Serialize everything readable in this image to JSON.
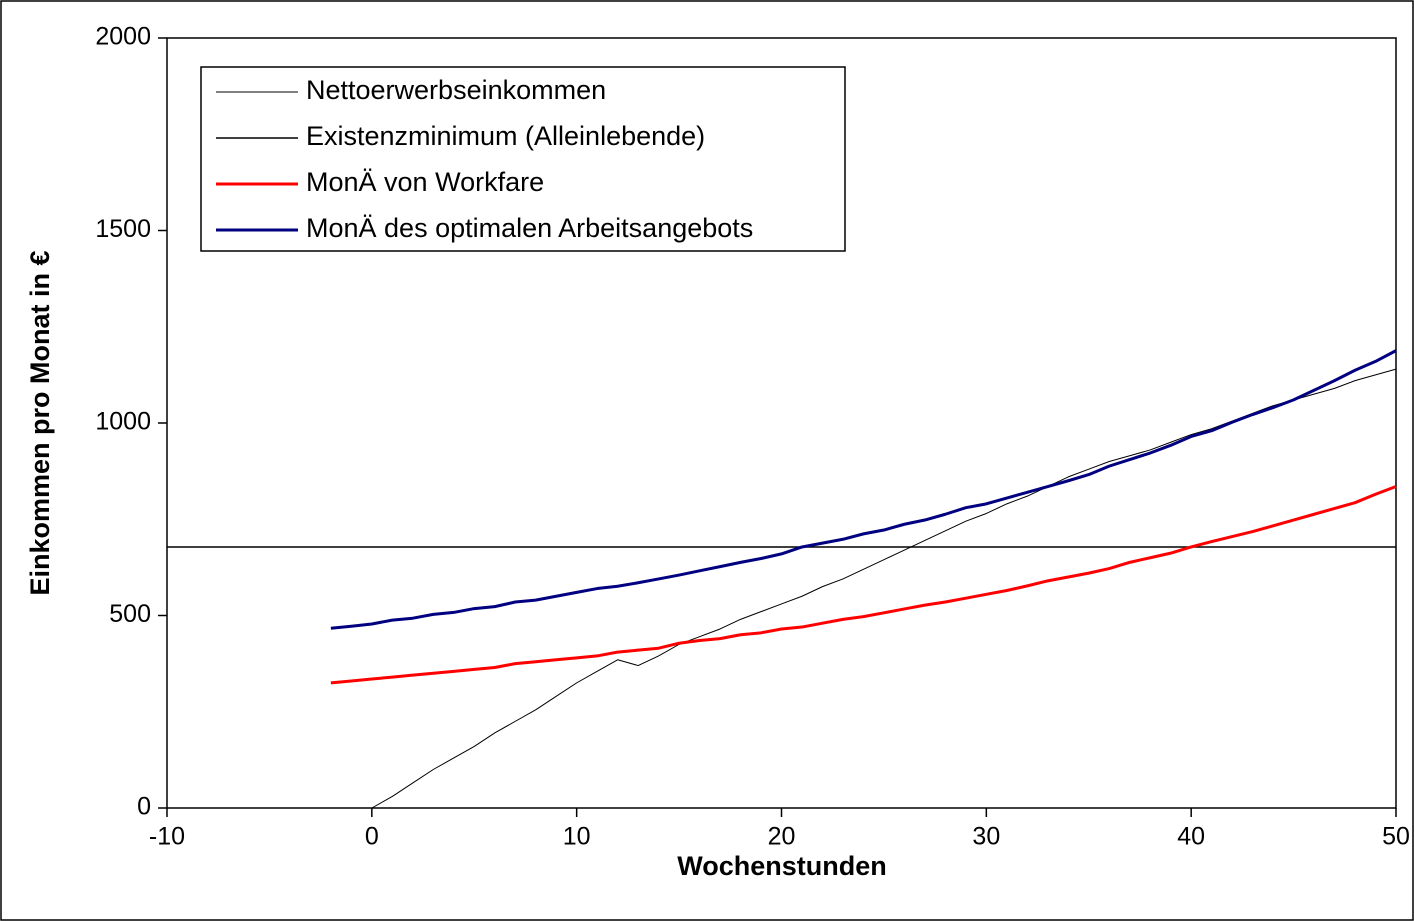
{
  "chart_data": {
    "type": "line",
    "xlabel": "Wochenstunden",
    "ylabel": "Einkommen pro Monat in €",
    "x": [
      -10,
      -2,
      -1,
      0,
      1,
      2,
      3,
      4,
      5,
      6,
      7,
      8,
      9,
      10,
      11,
      12,
      13,
      14,
      15,
      16,
      17,
      18,
      19,
      20,
      21,
      22,
      23,
      24,
      25,
      26,
      27,
      28,
      29,
      30,
      31,
      32,
      33,
      34,
      35,
      36,
      37,
      38,
      39,
      40,
      41,
      42,
      43,
      44,
      45,
      46,
      47,
      48,
      49,
      50
    ],
    "series": [
      {
        "name": "Nettoerwerbseinkommen",
        "color": "#000000",
        "width": 1,
        "values": [
          null,
          null,
          null,
          0,
          30,
          65,
          100,
          130,
          160,
          195,
          225,
          255,
          290,
          325,
          355,
          385,
          370,
          395,
          425,
          445,
          465,
          490,
          510,
          530,
          550,
          575,
          595,
          620,
          645,
          670,
          695,
          720,
          745,
          765,
          790,
          810,
          835,
          860,
          880,
          900,
          915,
          930,
          950,
          970,
          985,
          1005,
          1025,
          1045,
          1060,
          1075,
          1090,
          1110,
          1125,
          1140
        ]
      },
      {
        "name": "Existenzminimum (Alleinlebende)",
        "color": "#000000",
        "width": 1.5,
        "values": [
          678,
          678,
          678,
          678,
          678,
          678,
          678,
          678,
          678,
          678,
          678,
          678,
          678,
          678,
          678,
          678,
          678,
          678,
          678,
          678,
          678,
          678,
          678,
          678,
          678,
          678,
          678,
          678,
          678,
          678,
          678,
          678,
          678,
          678,
          678,
          678,
          678,
          678,
          678,
          678,
          678,
          678,
          678,
          678,
          678,
          678,
          678,
          678,
          678,
          678,
          678,
          678,
          678,
          678
        ]
      },
      {
        "name": "MonÄ von Workfare",
        "color": "#ff0000",
        "width": 3,
        "values": [
          null,
          325,
          330,
          335,
          340,
          345,
          350,
          355,
          360,
          365,
          375,
          380,
          385,
          390,
          395,
          405,
          410,
          415,
          428,
          435,
          440,
          450,
          455,
          465,
          470,
          480,
          490,
          497,
          507,
          517,
          527,
          535,
          545,
          555,
          565,
          577,
          590,
          600,
          610,
          622,
          638,
          650,
          662,
          678,
          692,
          705,
          718,
          733,
          748,
          763,
          778,
          793,
          815,
          835
        ]
      },
      {
        "name": "MonÄ des optimalen Arbeitsangebots",
        "color": "#000080",
        "width": 3,
        "values": [
          null,
          467,
          472,
          478,
          488,
          493,
          503,
          508,
          518,
          523,
          535,
          540,
          550,
          560,
          570,
          576,
          585,
          595,
          605,
          616,
          627,
          638,
          648,
          660,
          678,
          688,
          698,
          712,
          722,
          737,
          748,
          763,
          780,
          790,
          805,
          820,
          835,
          850,
          866,
          888,
          905,
          922,
          942,
          965,
          980,
          1002,
          1022,
          1040,
          1060,
          1085,
          1110,
          1137,
          1160,
          1188
        ]
      }
    ],
    "xlim": [
      -10,
      50
    ],
    "xticks": [
      -10,
      0,
      10,
      20,
      30,
      40,
      50
    ],
    "ylim": [
      0,
      2000
    ],
    "yticks": [
      0,
      500,
      1000,
      1500,
      2000
    ],
    "legend": "upper left"
  }
}
